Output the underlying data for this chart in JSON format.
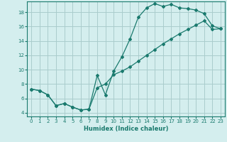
{
  "xlabel": "Humidex (Indice chaleur)",
  "bg_color": "#d4eeee",
  "grid_color": "#aacccc",
  "line_color": "#1a7a6e",
  "xlim": [
    -0.5,
    23.5
  ],
  "ylim": [
    3.5,
    19.5
  ],
  "xticks": [
    0,
    1,
    2,
    3,
    4,
    5,
    6,
    7,
    8,
    9,
    10,
    11,
    12,
    13,
    14,
    15,
    16,
    17,
    18,
    19,
    20,
    21,
    22,
    23
  ],
  "yticks": [
    4,
    6,
    8,
    10,
    12,
    14,
    16,
    18
  ],
  "line1_x": [
    0,
    1,
    2,
    3,
    4,
    5,
    6,
    7,
    8,
    9,
    10,
    11,
    12,
    13,
    14,
    15,
    16,
    17,
    18,
    19,
    20,
    21,
    22,
    23
  ],
  "line1_y": [
    7.3,
    7.1,
    6.5,
    5.0,
    5.3,
    4.8,
    4.4,
    4.5,
    9.2,
    6.5,
    9.8,
    11.8,
    14.3,
    17.3,
    18.6,
    19.2,
    18.8,
    19.1,
    18.6,
    18.5,
    18.3,
    17.8,
    16.1,
    15.7
  ],
  "line2_x": [
    0,
    1,
    2,
    3,
    4,
    5,
    6,
    7,
    8,
    9,
    10,
    11,
    12,
    13,
    14,
    15,
    16,
    17,
    18,
    19,
    20,
    21,
    22,
    23
  ],
  "line2_y": [
    7.3,
    7.1,
    6.5,
    5.0,
    5.3,
    4.8,
    4.4,
    4.5,
    7.5,
    8.0,
    9.3,
    9.8,
    10.4,
    11.2,
    12.0,
    12.8,
    13.6,
    14.3,
    15.0,
    15.6,
    16.2,
    16.8,
    15.6,
    15.7
  ]
}
